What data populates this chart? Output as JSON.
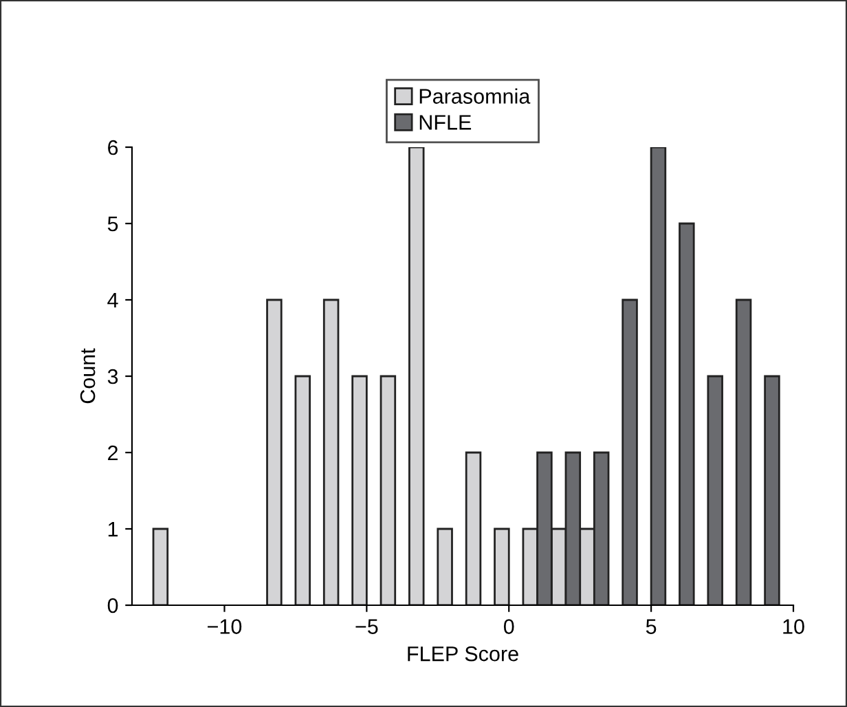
{
  "chart_data": {
    "type": "bar",
    "xlabel": "FLEP Score",
    "ylabel": "Count",
    "xlim": [
      -13.25,
      10
    ],
    "xticks": [
      {
        "value": -10,
        "label": "−10"
      },
      {
        "value": -5,
        "label": "−5"
      },
      0,
      5,
      10
    ],
    "ylim": [
      0,
      6
    ],
    "yticks": [
      0,
      1,
      2,
      3,
      4,
      5,
      6
    ],
    "grid": false,
    "legend": "top",
    "series": [
      {
        "name": "Parasomnia",
        "color": "#d4d4d6",
        "x": [
          -12.25,
          -8.25,
          -7.25,
          -6.25,
          -5.25,
          -4.25,
          -3.25,
          -2.25,
          -1.25,
          -0.25,
          0.75,
          1.75,
          2.75
        ],
        "values": [
          1,
          4,
          3,
          4,
          3,
          3,
          6,
          1,
          2,
          1,
          1,
          1,
          1
        ]
      },
      {
        "name": "NFLE",
        "color": "#6a6b6f",
        "x": [
          1.25,
          2.25,
          3.25,
          4.25,
          5.25,
          6.25,
          7.25,
          8.25,
          9.25
        ],
        "values": [
          2,
          2,
          2,
          4,
          6,
          5,
          3,
          4,
          3
        ]
      }
    ]
  }
}
